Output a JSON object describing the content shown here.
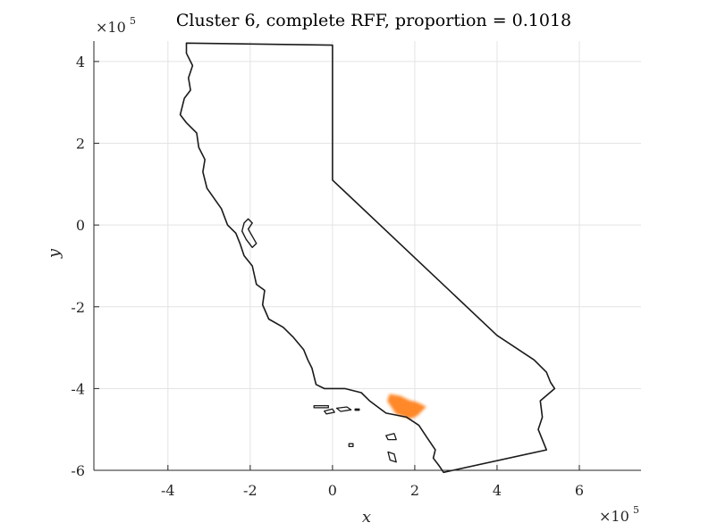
{
  "chart_data": {
    "type": "map",
    "title": "Cluster 6, complete RFF, proportion = 0.1018",
    "xlabel": "x",
    "ylabel": "y",
    "x_multiplier": {
      "base": "×10",
      "exp": "5"
    },
    "y_multiplier": {
      "base": "×10",
      "exp": "5"
    },
    "xlim": [
      -5.8,
      7.5
    ],
    "ylim": [
      -6.0,
      4.5
    ],
    "x_ticks": [
      -4,
      -2,
      0,
      2,
      4,
      6
    ],
    "x_tick_labels": [
      "-4",
      "-2",
      "0",
      "2",
      "4",
      "6"
    ],
    "y_ticks": [
      -6,
      -4,
      -2,
      0,
      2,
      4
    ],
    "y_tick_labels": [
      "-6",
      "-4",
      "-2",
      "0",
      "2",
      "4"
    ],
    "grid": true,
    "highlight_color": "#ff7f1a",
    "outline_color": "#1a1a1a",
    "state_outline": [
      [
        -3.55,
        4.45
      ],
      [
        0.0,
        4.4
      ],
      [
        0.0,
        1.1
      ],
      [
        2.0,
        -0.8
      ],
      [
        4.0,
        -2.7
      ],
      [
        4.9,
        -3.3
      ],
      [
        5.2,
        -3.6
      ],
      [
        5.3,
        -3.85
      ],
      [
        5.4,
        -4.0
      ],
      [
        5.05,
        -4.3
      ],
      [
        5.1,
        -4.7
      ],
      [
        5.0,
        -5.0
      ],
      [
        5.2,
        -5.5
      ],
      [
        2.7,
        -6.05
      ],
      [
        2.6,
        -5.9
      ],
      [
        2.45,
        -5.7
      ],
      [
        2.5,
        -5.5
      ],
      [
        2.3,
        -5.2
      ],
      [
        2.1,
        -4.9
      ],
      [
        1.8,
        -4.7
      ],
      [
        1.3,
        -4.6
      ],
      [
        0.9,
        -4.3
      ],
      [
        0.7,
        -4.1
      ],
      [
        0.3,
        -4.0
      ],
      [
        -0.2,
        -4.0
      ],
      [
        -0.4,
        -3.9
      ],
      [
        -0.5,
        -3.5
      ],
      [
        -0.6,
        -3.3
      ],
      [
        -0.7,
        -3.05
      ],
      [
        -0.95,
        -2.75
      ],
      [
        -1.2,
        -2.5
      ],
      [
        -1.55,
        -2.3
      ],
      [
        -1.7,
        -1.95
      ],
      [
        -1.65,
        -1.6
      ],
      [
        -1.85,
        -1.45
      ],
      [
        -1.95,
        -1.0
      ],
      [
        -2.15,
        -0.75
      ],
      [
        -2.25,
        -0.45
      ],
      [
        -2.35,
        -0.2
      ],
      [
        -2.55,
        0.0
      ],
      [
        -2.7,
        0.4
      ],
      [
        -3.05,
        0.9
      ],
      [
        -3.15,
        1.3
      ],
      [
        -3.1,
        1.6
      ],
      [
        -3.25,
        1.9
      ],
      [
        -3.3,
        2.25
      ],
      [
        -3.55,
        2.5
      ],
      [
        -3.7,
        2.7
      ],
      [
        -3.6,
        3.1
      ],
      [
        -3.45,
        3.3
      ],
      [
        -3.5,
        3.6
      ],
      [
        -3.4,
        3.9
      ],
      [
        -3.55,
        4.2
      ],
      [
        -3.55,
        4.45
      ]
    ],
    "bay_outline": [
      [
        -2.15,
        0.05
      ],
      [
        -2.05,
        0.15
      ],
      [
        -1.95,
        0.05
      ],
      [
        -2.05,
        -0.1
      ],
      [
        -1.85,
        -0.45
      ],
      [
        -1.95,
        -0.55
      ],
      [
        -2.1,
        -0.35
      ],
      [
        -2.2,
        -0.15
      ],
      [
        -2.15,
        0.05
      ]
    ],
    "islands": [
      [
        [
          -0.45,
          -4.42
        ],
        [
          -0.1,
          -4.42
        ],
        [
          -0.1,
          -4.47
        ],
        [
          -0.45,
          -4.47
        ]
      ],
      [
        [
          -0.2,
          -4.55
        ],
        [
          0.0,
          -4.5
        ],
        [
          0.05,
          -4.58
        ],
        [
          -0.15,
          -4.62
        ]
      ],
      [
        [
          0.1,
          -4.48
        ],
        [
          0.35,
          -4.45
        ],
        [
          0.45,
          -4.52
        ],
        [
          0.2,
          -4.56
        ]
      ],
      [
        [
          0.55,
          -4.5
        ],
        [
          0.65,
          -4.5
        ],
        [
          0.65,
          -4.53
        ],
        [
          0.55,
          -4.53
        ]
      ],
      [
        [
          1.3,
          -5.15
        ],
        [
          1.5,
          -5.1
        ],
        [
          1.55,
          -5.25
        ],
        [
          1.35,
          -5.25
        ]
      ],
      [
        [
          1.35,
          -5.55
        ],
        [
          1.5,
          -5.6
        ],
        [
          1.55,
          -5.8
        ],
        [
          1.4,
          -5.75
        ]
      ],
      [
        [
          0.4,
          -5.35
        ],
        [
          0.5,
          -5.35
        ],
        [
          0.5,
          -5.42
        ],
        [
          0.4,
          -5.42
        ]
      ]
    ],
    "highlighted_region": [
      [
        1.4,
        -4.15
      ],
      [
        1.65,
        -4.2
      ],
      [
        1.85,
        -4.3
      ],
      [
        2.05,
        -4.35
      ],
      [
        2.25,
        -4.45
      ],
      [
        2.15,
        -4.55
      ],
      [
        2.05,
        -4.65
      ],
      [
        1.9,
        -4.72
      ],
      [
        1.75,
        -4.68
      ],
      [
        1.55,
        -4.6
      ],
      [
        1.45,
        -4.45
      ],
      [
        1.35,
        -4.3
      ]
    ]
  }
}
